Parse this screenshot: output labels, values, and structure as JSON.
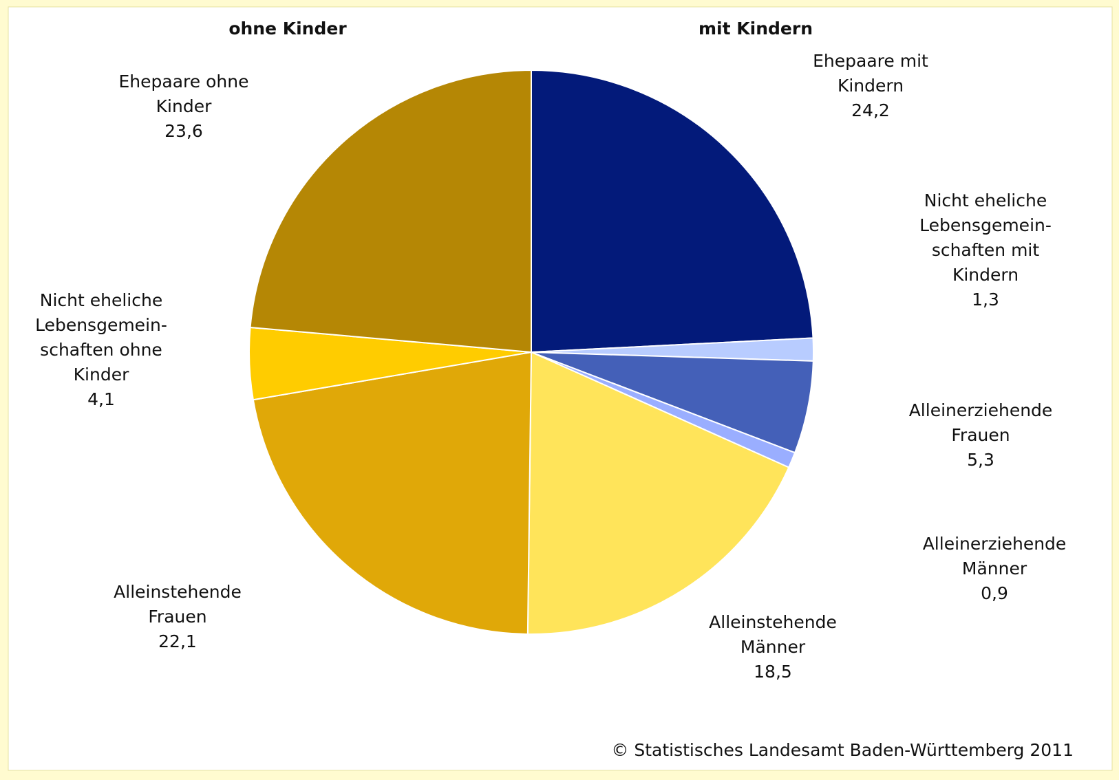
{
  "chart_data": {
    "type": "pie",
    "annotations": [
      {
        "text": "ohne Kinder",
        "color": "#8e6a00"
      },
      {
        "text": "mit Kindern",
        "color": "#1c2f9e"
      }
    ],
    "categories": [
      [
        "Ehepaare mit",
        "Kindern"
      ],
      [
        "Nicht eheliche",
        "Lebensgemein-",
        "schaften mit",
        "Kindern"
      ],
      [
        "Alleinerziehende",
        "Frauen"
      ],
      [
        "Alleinerziehende",
        "Männer"
      ],
      [
        "Alleinstehende",
        "Männer"
      ],
      [
        "Alleinstehende",
        "Frauen"
      ],
      [
        "Nicht eheliche",
        "Lebensgemein-",
        "schaften ohne",
        "Kinder"
      ],
      [
        "Ehepaare ohne",
        "Kinder"
      ]
    ],
    "values": [
      24.2,
      1.3,
      5.3,
      0.9,
      18.5,
      22.1,
      4.1,
      23.6
    ],
    "value_labels": [
      "24,2",
      "1,3",
      "5,3",
      "0,9",
      "18,5",
      "22,1",
      "4,1",
      "23,6"
    ],
    "colors": [
      "#031a7a",
      "#b8ccff",
      "#4460b8",
      "#9aaeff",
      "#ffe45a",
      "#e0a808",
      "#ffcc00",
      "#b58705"
    ],
    "source": "© Statistisches Landesamt Baden-Württemberg 2011"
  }
}
